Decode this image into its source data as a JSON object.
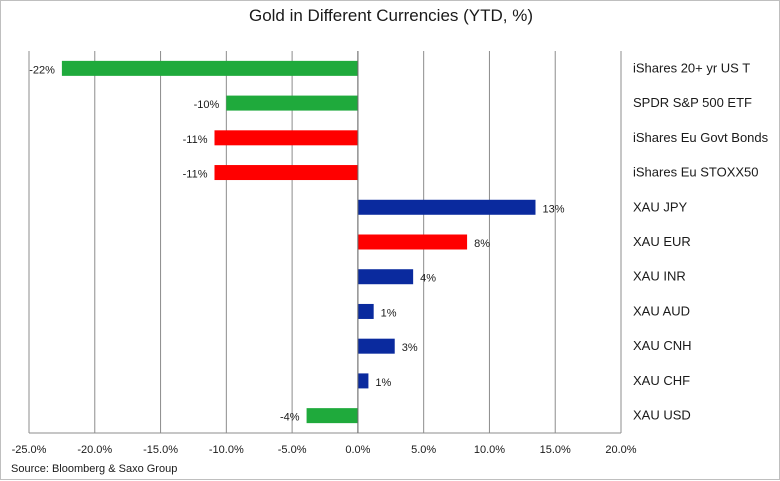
{
  "chart_data": {
    "type": "bar",
    "orientation": "horizontal",
    "title": "Gold in Different Currencies (YTD, %)",
    "categories": [
      "iShares 20+ yr US T",
      "SPDR S&P 500 ETF",
      "iShares Eu Govt Bonds",
      "iShares Eu STOXX50",
      "XAU JPY",
      "XAU EUR",
      "XAU INR",
      "XAU AUD",
      "XAU CNH",
      "XAU CHF",
      "XAU USD"
    ],
    "values": [
      -22.5,
      -10.0,
      -10.9,
      -10.9,
      13.5,
      8.3,
      4.2,
      1.2,
      2.8,
      0.8,
      -3.9
    ],
    "value_labels": [
      "-22%",
      "-10%",
      "-11%",
      "-11%",
      "13%",
      "8%",
      "4%",
      "1%",
      "3%",
      "1%",
      "-4%"
    ],
    "bar_colors": [
      "#1faa3c",
      "#1faa3c",
      "#ff0000",
      "#ff0000",
      "#0a2a9e",
      "#ff0000",
      "#0a2a9e",
      "#0a2a9e",
      "#0a2a9e",
      "#0a2a9e",
      "#1faa3c"
    ],
    "xlim": [
      -25,
      20
    ],
    "xticks": [
      -25,
      -20,
      -15,
      -10,
      -5,
      0,
      5,
      10,
      15,
      20
    ],
    "xtick_labels": [
      "-25.0%",
      "-20.0%",
      "-15.0%",
      "-10.0%",
      "-5.0%",
      "0.0%",
      "5.0%",
      "10.0%",
      "15.0%",
      "20.0%"
    ],
    "grid": "vertical",
    "category_labels_position": "right",
    "source": "Source: Bloomberg & Saxo Group"
  }
}
